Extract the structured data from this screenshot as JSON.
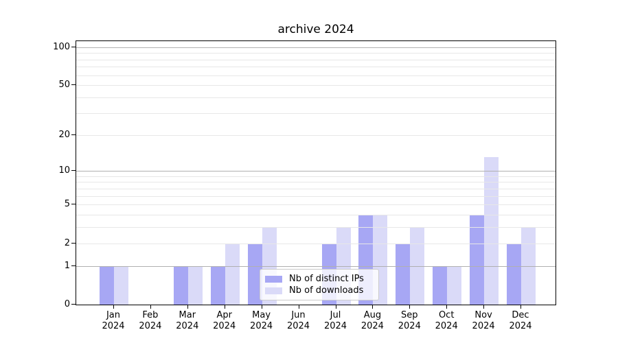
{
  "title": "archive 2024",
  "chart_data": {
    "type": "bar",
    "title": "archive 2024",
    "categories": [
      "Jan",
      "Feb",
      "Mar",
      "Apr",
      "May",
      "Jun",
      "Jul",
      "Aug",
      "Sep",
      "Oct",
      "Nov",
      "Dec"
    ],
    "year_label": "2024",
    "series": [
      {
        "name": "Nb of distinct IPs",
        "color": "#a7a7f4",
        "values": [
          1,
          0,
          1,
          1,
          2,
          0,
          2,
          4,
          2,
          1,
          4,
          2
        ]
      },
      {
        "name": "Nb of downloads",
        "color": "#dadaf8",
        "values": [
          1,
          0,
          1,
          2,
          3,
          0,
          3,
          4,
          3,
          1,
          13,
          3
        ]
      }
    ],
    "yscale": "log1p",
    "ylim": [
      0,
      113
    ],
    "yticks": [
      100,
      50,
      20,
      10,
      5,
      2,
      1,
      0
    ],
    "grid_major": [
      1,
      10,
      100
    ],
    "grid_minor": [
      2,
      3,
      4,
      5,
      6,
      7,
      8,
      9,
      20,
      30,
      40,
      50,
      60,
      70,
      80,
      90
    ],
    "legend_position": "lower center",
    "colors": {
      "grid_major": "#b0b0b0",
      "grid_minor": "#e7e7e7",
      "axis": "#000000",
      "text": "#000000",
      "legend_border": "#cccccc"
    }
  }
}
